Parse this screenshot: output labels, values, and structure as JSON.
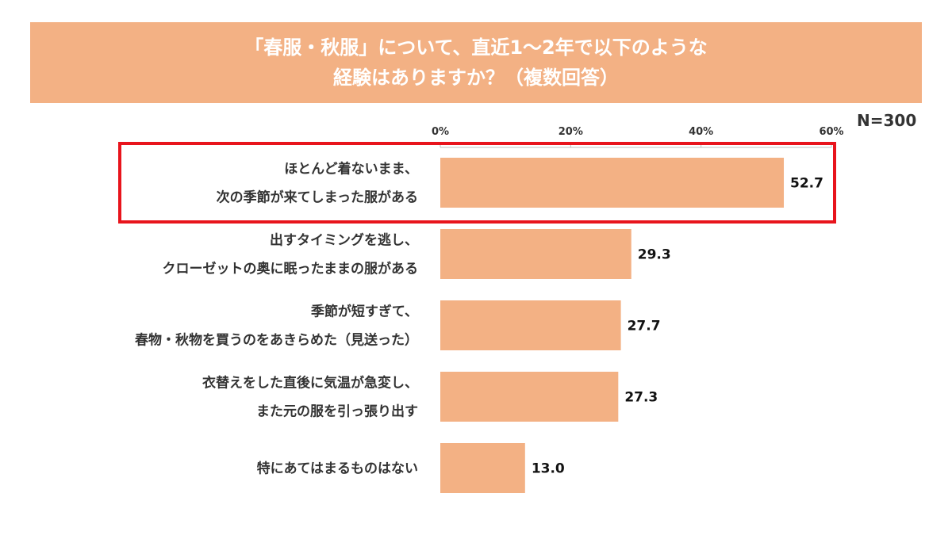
{
  "header": {
    "title_line1": "「春服・秋服」について、直近1〜2年で以下のような",
    "title_line2": "経験はありますか？（複数回答）",
    "sample_size": "N=300"
  },
  "colors": {
    "banner": "#f3b184",
    "bar": "#f3b184",
    "highlight": "#e8141c"
  },
  "chart_data": {
    "type": "bar",
    "orientation": "horizontal",
    "title": "「春服・秋服」について、直近1〜2年で以下のような経験はありますか？（複数回答）",
    "unit": "%",
    "xlim": [
      0,
      60
    ],
    "xticks": [
      "0%",
      "20%",
      "40%",
      "60%"
    ],
    "categories": [
      [
        "ほとんど着ないまま、",
        "次の季節が来てしまった服がある"
      ],
      [
        "出すタイミングを逃し、",
        "クローゼットの奥に眠ったままの服がある"
      ],
      [
        "季節が短すぎて、",
        "春物・秋物を買うのをあきらめた（見送った）"
      ],
      [
        "衣替えをした直後に気温が急変し、",
        "また元の服を引っ張り出す"
      ],
      [
        "特にあてはまるものはない"
      ]
    ],
    "values": [
      52.7,
      29.3,
      27.7,
      27.3,
      13.0
    ],
    "value_labels": [
      "52.7",
      "29.3",
      "27.7",
      "27.3",
      "13.0"
    ],
    "highlighted_index": 0
  }
}
